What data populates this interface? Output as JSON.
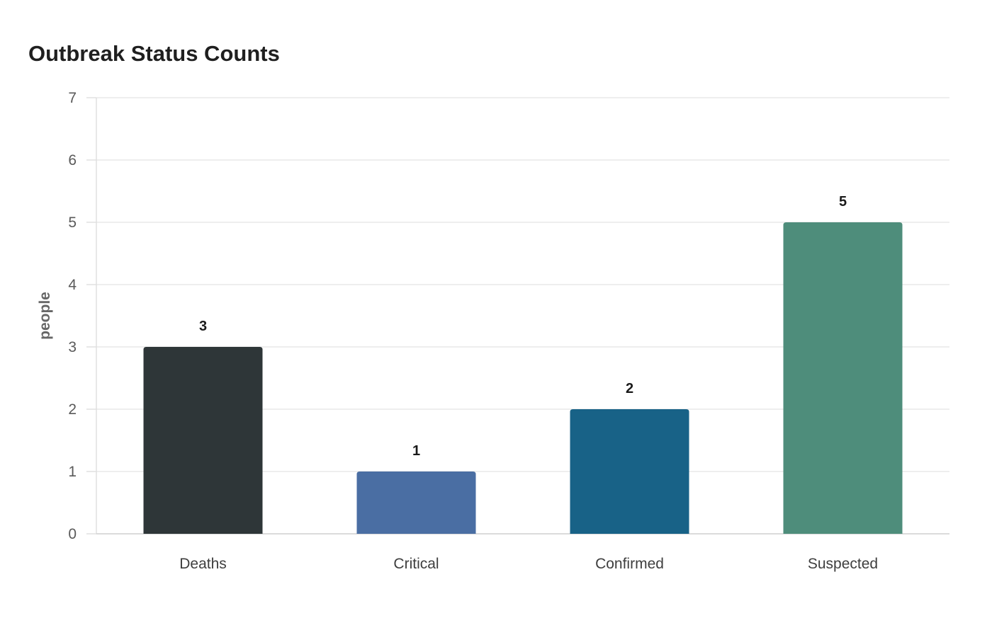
{
  "chart_data": {
    "type": "bar",
    "title": "Outbreak Status Counts",
    "xlabel": "",
    "ylabel": "people",
    "ylim": [
      0,
      7
    ],
    "yticks": [
      0,
      1,
      2,
      3,
      4,
      5,
      6,
      7
    ],
    "categories": [
      "Deaths",
      "Critical",
      "Confirmed",
      "Suspected"
    ],
    "values": [
      3,
      1,
      2,
      5
    ],
    "data_labels": [
      "3",
      "1",
      "2",
      "5"
    ],
    "colors": [
      "#2e3638",
      "#4a6ea3",
      "#186287",
      "#4e8d7b"
    ],
    "grid": true,
    "legend": "none"
  }
}
